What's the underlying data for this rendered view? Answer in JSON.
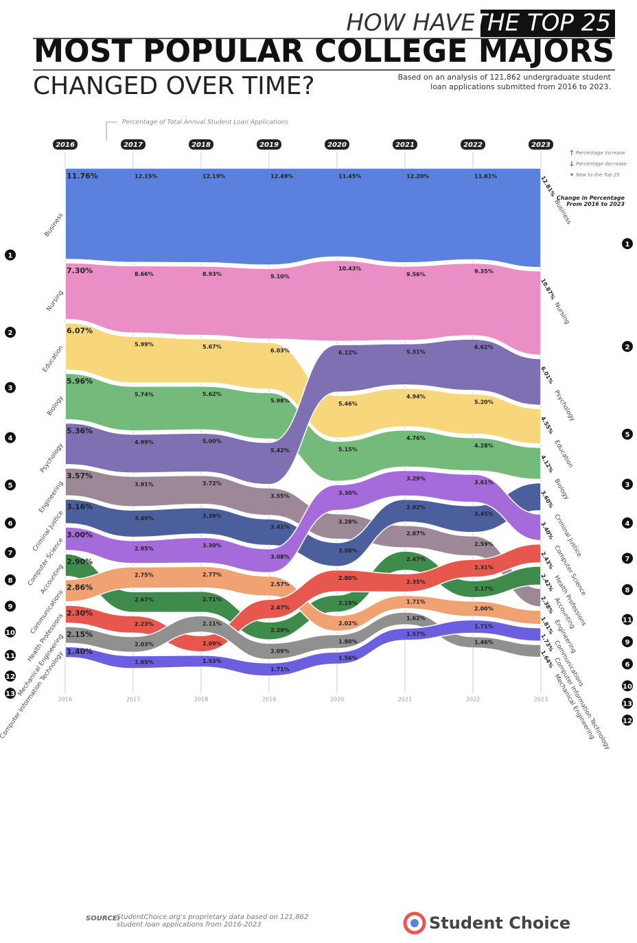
{
  "chart_data": {
    "type": "bump",
    "title_lead": "HOW HAVE",
    "title_highlight": "THE TOP 25",
    "title_main": "MOST POPULAR COLLEGE MAJORS",
    "title_end": "CHANGED OVER TIME?",
    "description": "Based on an analysis of 121,862 undergraduate student loan applications submitted from 2016 to 2023.",
    "subtitle": "Percentage of Total Annual Student Loan Applications",
    "legend_items": [
      "Percentage increase",
      "Percentage decrease",
      "New to the Top 25"
    ],
    "change_title": "Change in Percentage From 2016 to 2023",
    "source_label": "SOURCE:",
    "source": "StudentChoice.org's proprietary data based on 121,862 student loan applications from 2016-2023",
    "brand": "Student Choice",
    "ranks": [
      1,
      2,
      3,
      4,
      5,
      6,
      7,
      8,
      9,
      10,
      11,
      12,
      13
    ],
    "x": [
      2016,
      2017,
      2018,
      2019,
      2020,
      2021,
      2022,
      2023
    ],
    "series": [
      {
        "name": "Business",
        "color": "#5b80dd",
        "values": [
          11.76,
          12.15,
          12.19,
          12.49,
          11.45,
          12.2,
          11.81,
          12.81
        ],
        "value_labels": [
          "11.76%",
          "12.15%",
          "12.19%",
          "12.49%",
          "11.45%",
          "12.20%",
          "11.81%",
          "12.81%"
        ]
      },
      {
        "name": "Nursing",
        "color": "#ea8fc6",
        "values": [
          7.3,
          8.66,
          8.93,
          9.1,
          10.43,
          9.56,
          9.35,
          10.87
        ],
        "value_labels": [
          "7.30%",
          "8.66%",
          "8.93%",
          "9.10%",
          "10.43%",
          "9.56%",
          "9.35%",
          "10.87%"
        ]
      },
      {
        "name": "Education",
        "color": "#f8d77c",
        "values": [
          6.07,
          5.99,
          5.67,
          6.03,
          5.46,
          4.94,
          5.2,
          4.55
        ],
        "value_labels": [
          "6.07%",
          "5.99%",
          "5.67%",
          "6.03%",
          "5.46%",
          "4.94%",
          "5.20%",
          "4.55%"
        ]
      },
      {
        "name": "Biology",
        "color": "#74ba7b",
        "values": [
          5.96,
          5.74,
          5.62,
          5.98,
          5.15,
          4.76,
          4.28,
          4.12
        ],
        "value_labels": [
          "5.96%",
          "5.74%",
          "5.62%",
          "5.98%",
          "5.15%",
          "4.76%",
          "4.28%",
          "4.12%"
        ]
      },
      {
        "name": "Psychology",
        "color": "#7e70b3",
        "values": [
          5.36,
          4.99,
          5.0,
          5.42,
          6.12,
          5.31,
          6.62,
          6.01
        ],
        "value_labels": [
          "5.36%",
          "4.99%",
          "5.00%",
          "5.42%",
          "6.12%",
          "5.31%",
          "6.62%",
          "6.01%"
        ]
      },
      {
        "name": "Engineering",
        "color": "#9d8898",
        "values": [
          3.57,
          3.91,
          3.72,
          3.55,
          3.28,
          2.87,
          2.59,
          2.38
        ],
        "value_labels": [
          "3.57%",
          "3.91%",
          "3.72%",
          "3.55%",
          "3.28%",
          "2.87%",
          "2.59%",
          "2.38%"
        ]
      },
      {
        "name": "Criminal Justice",
        "color": "#4b5f9c",
        "values": [
          3.16,
          3.49,
          3.39,
          3.41,
          3.08,
          2.92,
          3.45,
          3.6
        ],
        "value_labels": [
          "3.16%",
          "3.49%",
          "3.39%",
          "3.41%",
          "3.08%",
          "2.92%",
          "3.45%",
          "3.60%"
        ]
      },
      {
        "name": "Computer Science",
        "color": "#a56bdb",
        "values": [
          3.0,
          2.95,
          3.3,
          3.08,
          3.3,
          3.29,
          3.61,
          3.4
        ],
        "value_labels": [
          "3.00%",
          "2.95%",
          "3.30%",
          "3.08%",
          "3.30%",
          "3.29%",
          "3.61%",
          "3.40%"
        ]
      },
      {
        "name": "Accounting",
        "color": "#3f8b4b",
        "values": [
          2.9,
          2.67,
          2.71,
          2.29,
          2.19,
          2.47,
          2.17,
          2.42
        ],
        "value_labels": [
          "2.90%",
          "2.67%",
          "2.71%",
          "2.29%",
          "2.19%",
          "2.47%",
          "2.17%",
          "2.42%"
        ]
      },
      {
        "name": "Communications",
        "color": "#f0a273",
        "values": [
          2.86,
          2.75,
          2.77,
          2.57,
          2.02,
          1.71,
          2.0,
          1.81
        ],
        "value_labels": [
          "2.86%",
          "2.75%",
          "2.77%",
          "2.57%",
          "2.02%",
          "1.71%",
          "2.00%",
          "1.81%"
        ]
      },
      {
        "name": "Health Professions",
        "color": "#e8574d",
        "values": [
          2.3,
          2.23,
          2.09,
          2.47,
          2.8,
          2.35,
          2.31,
          2.43
        ],
        "value_labels": [
          "2.30%",
          "2.23%",
          "2.09%",
          "2.47%",
          "2.80%",
          "2.35%",
          "2.31%",
          "2.43%"
        ]
      },
      {
        "name": "Mechanical Engineering",
        "color": "#909090",
        "values": [
          2.15,
          2.03,
          2.11,
          2.09,
          1.8,
          1.62,
          1.46,
          1.64
        ],
        "value_labels": [
          "2.15%",
          "2.03%",
          "2.11%",
          "2.09%",
          "1.80%",
          "1.62%",
          "1.46%",
          "1.64%"
        ]
      },
      {
        "name": "Computer Information Technology",
        "color": "#6b5fe0",
        "values": [
          1.4,
          1.65,
          1.53,
          1.71,
          1.56,
          1.57,
          1.71,
          1.73
        ],
        "value_labels": [
          "1.40%",
          "1.65%",
          "1.53%",
          "1.71%",
          "1.56%",
          "1.57%",
          "1.71%",
          "1.73%"
        ]
      }
    ]
  }
}
